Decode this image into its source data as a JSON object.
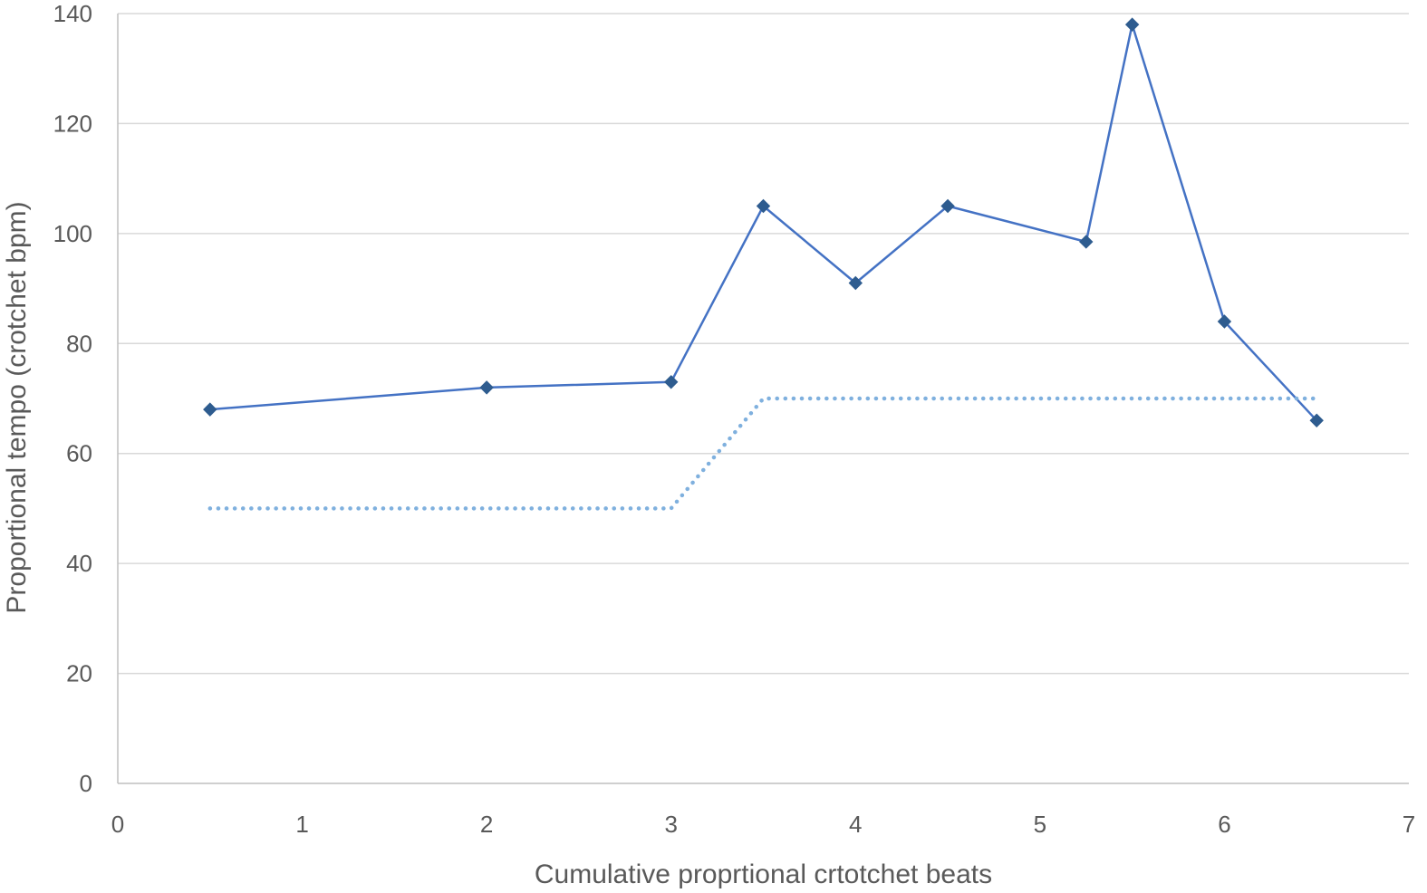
{
  "chart_data": {
    "type": "line",
    "title": "",
    "xlabel": "Cumulative proprtional crtotchet beats",
    "ylabel": "Proportional tempo (crotchet bpm)",
    "xlim": [
      0,
      7
    ],
    "ylim": [
      0,
      140
    ],
    "x_ticks": [
      0,
      1,
      2,
      3,
      4,
      5,
      6,
      7
    ],
    "y_ticks": [
      0,
      20,
      40,
      60,
      80,
      100,
      120,
      140
    ],
    "grid": "horizontal",
    "legend": "none",
    "series": [
      {
        "style": "solid-with-diamond-markers",
        "color": "#4472c4",
        "marker_color": "#2e5c8f",
        "x": [
          0.5,
          2,
          3,
          3.5,
          4,
          4.5,
          5.25,
          5.5,
          6,
          6.5
        ],
        "y": [
          68,
          72,
          73,
          105,
          91,
          105,
          98.5,
          138,
          84,
          66
        ]
      },
      {
        "style": "dotted",
        "color": "#7fb0de",
        "x": [
          0.5,
          3,
          3.5,
          6.5
        ],
        "y": [
          50,
          50,
          70,
          70
        ]
      }
    ]
  }
}
